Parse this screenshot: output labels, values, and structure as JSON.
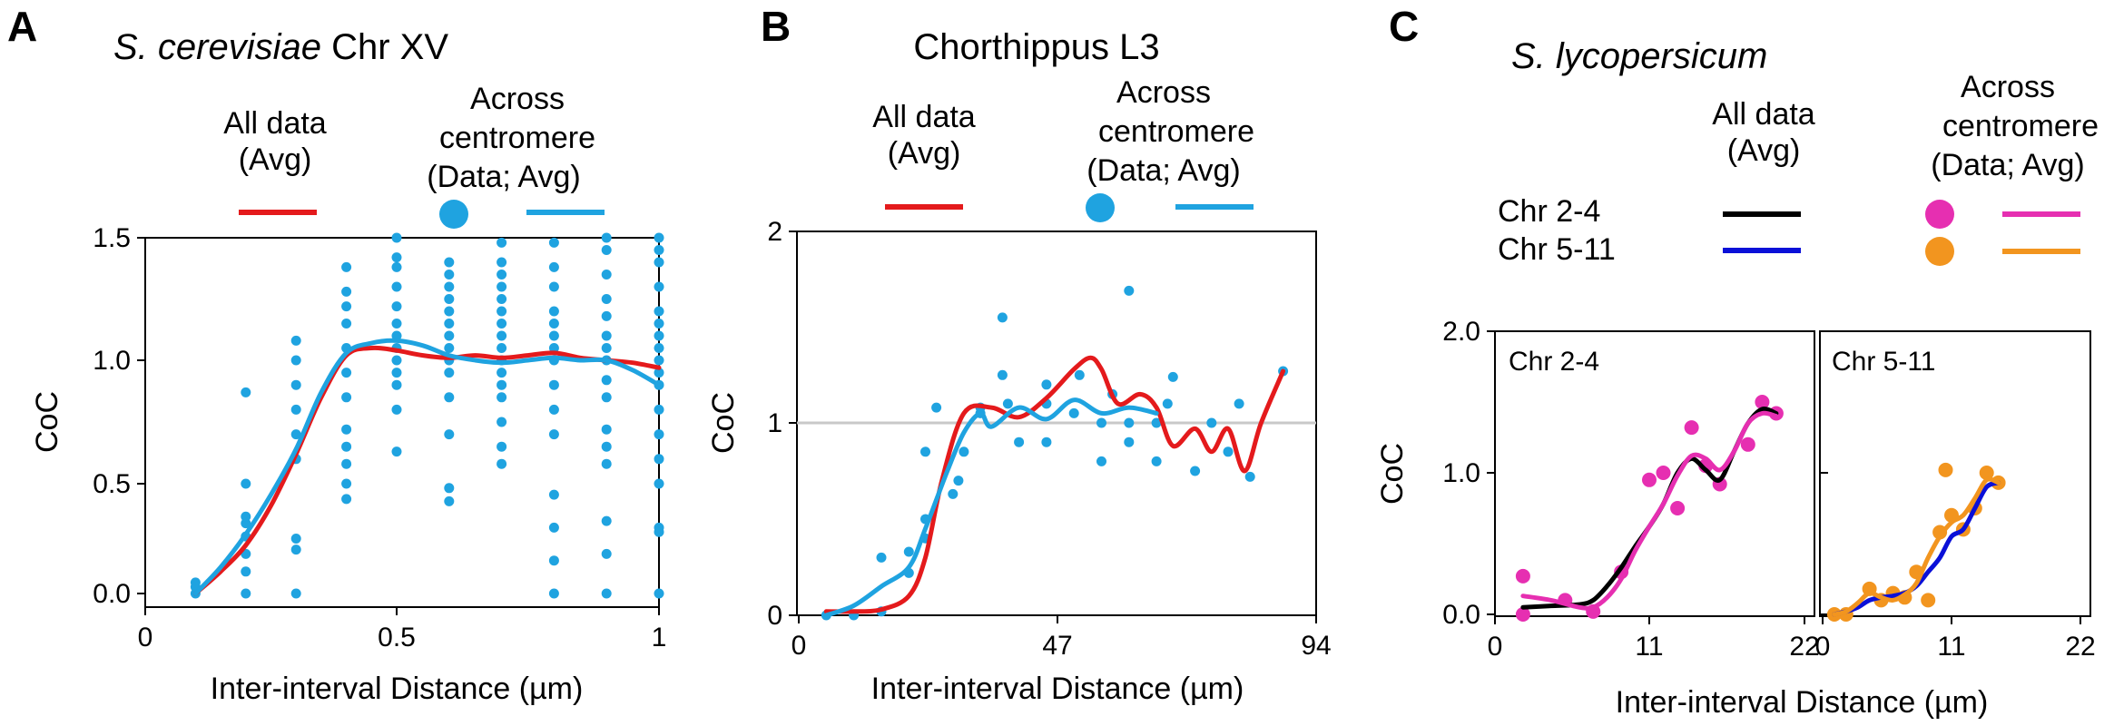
{
  "colors": {
    "red": "#e41a1c",
    "blue_data": "#1fa3e0",
    "black": "#000000",
    "dark_blue": "#0a10d8",
    "magenta": "#e62fb1",
    "orange": "#f2951f"
  },
  "panels": {
    "A": {
      "letter": "A",
      "title_italic": "S. cerevisiae",
      "title_rest": " Chr XV",
      "legend_all": [
        "All data",
        "(Avg)"
      ],
      "legend_across": [
        "Across",
        "centromere",
        "(Data; Avg)"
      ]
    },
    "B": {
      "letter": "B",
      "title": "Chorthippus L3",
      "legend_all": [
        "All data",
        "(Avg)"
      ],
      "legend_across": [
        "Across",
        "centromere",
        "(Data; Avg)"
      ]
    },
    "C": {
      "letter": "C",
      "title_italic": "S. lycopersicum",
      "legend_all": [
        "All data",
        "(Avg)"
      ],
      "legend_across": [
        "Across",
        "centromere",
        "(Data; Avg)"
      ],
      "row1": "Chr 2-4",
      "row2": "Chr 5-11"
    }
  },
  "chart_data": [
    {
      "type": "scatter",
      "panel": "A",
      "title": "S. cerevisiae Chr XV",
      "xlabel": "Inter-interval Distance (µm)",
      "ylabel": "CoC",
      "xlim": [
        0,
        1
      ],
      "ylim": [
        0,
        1.5
      ],
      "xticks": [
        "0",
        "0.5",
        "1"
      ],
      "yticks": [
        "0.0",
        "0.5",
        "1.0",
        "1.5"
      ],
      "series": [
        {
          "name": "All data (Avg)",
          "kind": "line",
          "color": "red",
          "x": [
            0.1,
            0.15,
            0.2,
            0.25,
            0.3,
            0.35,
            0.4,
            0.45,
            0.5,
            0.55,
            0.6,
            0.65,
            0.7,
            0.75,
            0.8,
            0.85,
            0.9,
            0.95,
            1.0
          ],
          "y": [
            0.0,
            0.1,
            0.22,
            0.4,
            0.62,
            0.85,
            1.02,
            1.05,
            1.04,
            1.02,
            1.01,
            1.02,
            1.01,
            1.02,
            1.03,
            1.01,
            1.0,
            0.99,
            0.97
          ]
        },
        {
          "name": "Across centromere (Avg)",
          "kind": "line",
          "color": "blue_data",
          "x": [
            0.1,
            0.15,
            0.2,
            0.25,
            0.3,
            0.35,
            0.4,
            0.45,
            0.5,
            0.55,
            0.6,
            0.65,
            0.7,
            0.75,
            0.8,
            0.85,
            0.9,
            0.95,
            1.0
          ],
          "y": [
            0.0,
            0.12,
            0.27,
            0.45,
            0.64,
            0.87,
            1.03,
            1.07,
            1.08,
            1.06,
            1.02,
            1.0,
            0.99,
            1.0,
            1.01,
            1.0,
            1.0,
            0.96,
            0.9
          ]
        },
        {
          "name": "Across centromere (Data)",
          "kind": "points",
          "color": "blue_data",
          "groups": [
            {
              "x": 0.1,
              "y": [
                0.0,
                0.03,
                0.05
              ]
            },
            {
              "x": 0.2,
              "y": [
                0.0,
                0.1,
                0.18,
                0.26,
                0.32,
                0.35,
                0.5,
                0.87
              ]
            },
            {
              "x": 0.3,
              "y": [
                0.0,
                0.2,
                0.25,
                0.6,
                0.7,
                0.8,
                0.9,
                1.0,
                1.08
              ]
            },
            {
              "x": 0.4,
              "y": [
                0.43,
                0.5,
                0.58,
                0.65,
                0.72,
                0.85,
                0.95,
                1.05,
                1.15,
                1.22,
                1.28,
                1.38
              ]
            },
            {
              "x": 0.5,
              "y": [
                0.63,
                0.8,
                0.9,
                0.95,
                1.0,
                1.05,
                1.1,
                1.15,
                1.22,
                1.3,
                1.38,
                1.42,
                1.5
              ]
            },
            {
              "x": 0.6,
              "y": [
                0.42,
                0.48,
                0.7,
                0.85,
                0.95,
                1.0,
                1.05,
                1.1,
                1.15,
                1.2,
                1.25,
                1.3,
                1.35,
                1.4
              ]
            },
            {
              "x": 0.7,
              "y": [
                0.58,
                0.65,
                0.75,
                0.85,
                0.9,
                0.95,
                1.0,
                1.05,
                1.1,
                1.15,
                1.2,
                1.25,
                1.3,
                1.35,
                1.4,
                1.48
              ]
            },
            {
              "x": 0.8,
              "y": [
                0.0,
                0.15,
                0.3,
                0.45,
                0.7,
                0.8,
                0.9,
                1.0,
                1.05,
                1.1,
                1.15,
                1.2,
                1.3,
                1.38,
                1.48
              ]
            },
            {
              "x": 0.9,
              "y": [
                0.0,
                0.18,
                0.33,
                0.58,
                0.65,
                0.72,
                0.85,
                0.92,
                1.0,
                1.05,
                1.1,
                1.18,
                1.25,
                1.35,
                1.45,
                1.5
              ]
            },
            {
              "x": 1.0,
              "y": [
                0.0,
                0.28,
                0.3,
                0.5,
                0.6,
                0.7,
                0.8,
                0.9,
                0.95,
                1.0,
                1.05,
                1.1,
                1.15,
                1.2,
                1.3,
                1.4,
                1.45,
                1.5
              ]
            }
          ]
        }
      ]
    },
    {
      "type": "scatter",
      "panel": "B",
      "title": "Chorthippus L3",
      "xlabel": "Inter-interval Distance (µm)",
      "ylabel": "CoC",
      "xlim": [
        0,
        94
      ],
      "ylim": [
        0,
        2
      ],
      "xticks": [
        "0",
        "47",
        "94"
      ],
      "yticks": [
        "0",
        "1",
        "2"
      ],
      "reference_y": 1,
      "series": [
        {
          "name": "All data (Avg)",
          "kind": "line",
          "color": "red",
          "x": [
            5,
            10,
            15,
            20,
            23,
            26,
            30,
            35,
            40,
            45,
            50,
            53,
            55,
            58,
            62,
            65,
            68,
            72,
            75,
            78,
            81,
            84,
            88
          ],
          "y": [
            0.02,
            0.02,
            0.03,
            0.1,
            0.3,
            0.7,
            1.05,
            1.08,
            1.03,
            1.13,
            1.28,
            1.34,
            1.28,
            1.1,
            1.15,
            1.08,
            0.88,
            0.97,
            0.85,
            0.97,
            0.75,
            1.0,
            1.27
          ]
        },
        {
          "name": "Across centromere (Avg)",
          "kind": "line",
          "color": "blue_data",
          "x": [
            5,
            10,
            15,
            20,
            23,
            27,
            30,
            33,
            35,
            40,
            45,
            50,
            55,
            60,
            65
          ],
          "y": [
            0.0,
            0.05,
            0.15,
            0.25,
            0.45,
            0.75,
            0.95,
            1.05,
            0.98,
            1.08,
            1.02,
            1.12,
            1.05,
            1.08,
            1.05
          ]
        },
        {
          "name": "Across centromere (Data)",
          "kind": "points",
          "color": "blue_data",
          "points": [
            [
              5,
              0.0
            ],
            [
              10,
              0.0
            ],
            [
              15,
              0.02
            ],
            [
              15,
              0.3
            ],
            [
              20,
              0.22
            ],
            [
              20,
              0.33
            ],
            [
              23,
              0.4
            ],
            [
              23,
              0.5
            ],
            [
              23,
              0.85
            ],
            [
              25,
              1.08
            ],
            [
              28,
              0.63
            ],
            [
              29,
              0.7
            ],
            [
              30,
              0.85
            ],
            [
              33,
              1.05
            ],
            [
              33,
              1.08
            ],
            [
              37,
              1.25
            ],
            [
              37,
              1.55
            ],
            [
              38,
              1.1
            ],
            [
              40,
              0.9
            ],
            [
              45,
              0.9
            ],
            [
              45,
              1.1
            ],
            [
              45,
              1.2
            ],
            [
              50,
              1.05
            ],
            [
              51,
              1.25
            ],
            [
              55,
              0.8
            ],
            [
              55,
              1.0
            ],
            [
              57,
              1.15
            ],
            [
              60,
              0.9
            ],
            [
              60,
              1.0
            ],
            [
              60,
              1.69
            ],
            [
              65,
              0.8
            ],
            [
              65,
              1.0
            ],
            [
              67,
              1.1
            ],
            [
              68,
              1.24
            ],
            [
              72,
              0.75
            ],
            [
              75,
              1.0
            ],
            [
              78,
              0.85
            ],
            [
              80,
              1.1
            ],
            [
              82,
              0.72
            ],
            [
              88,
              1.27
            ]
          ]
        }
      ]
    },
    {
      "type": "scatter",
      "panel": "C1",
      "title": "S. lycopersicum",
      "subtitle": "Chr 2-4",
      "xlabel": "Inter-interval Distance (µm)",
      "ylabel": "CoC",
      "xlim": [
        0,
        22
      ],
      "ylim": [
        0,
        2
      ],
      "xticks": [
        "0",
        "11",
        "22"
      ],
      "yticks": [
        "0.0",
        "1.0",
        "2.0"
      ],
      "series": [
        {
          "name": "All data (Avg) Chr 2-4",
          "kind": "line",
          "color": "black",
          "x": [
            2,
            4,
            6,
            7,
            8,
            9,
            10,
            11,
            12,
            13,
            14,
            15,
            16,
            17,
            18,
            19,
            20
          ],
          "y": [
            0.05,
            0.06,
            0.07,
            0.1,
            0.2,
            0.33,
            0.48,
            0.62,
            0.78,
            1.0,
            1.1,
            1.02,
            0.95,
            1.15,
            1.35,
            1.45,
            1.42
          ]
        },
        {
          "name": "Across centromere (Avg) Chr 2-4",
          "kind": "line",
          "color": "magenta",
          "x": [
            2,
            4,
            6,
            7,
            8,
            9,
            10,
            11,
            12,
            13,
            14,
            15,
            16,
            17,
            18,
            19,
            20
          ],
          "y": [
            0.13,
            0.1,
            0.05,
            0.05,
            0.12,
            0.25,
            0.45,
            0.62,
            0.78,
            0.98,
            1.12,
            1.1,
            1.02,
            1.15,
            1.35,
            1.42,
            1.4
          ]
        },
        {
          "name": "Across centromere (Data) Chr 2-4",
          "kind": "points",
          "color": "magenta",
          "points": [
            [
              2,
              0.27
            ],
            [
              2,
              0.0
            ],
            [
              5,
              0.1
            ],
            [
              7,
              0.02
            ],
            [
              9,
              0.3
            ],
            [
              11,
              0.95
            ],
            [
              12,
              1.0
            ],
            [
              13,
              0.75
            ],
            [
              14,
              1.32
            ],
            [
              15,
              1.05
            ],
            [
              16,
              0.92
            ],
            [
              18,
              1.2
            ],
            [
              19,
              1.5
            ],
            [
              20,
              1.42
            ]
          ]
        }
      ]
    },
    {
      "type": "scatter",
      "panel": "C2",
      "title": "S. lycopersicum",
      "subtitle": "Chr 5-11",
      "xlabel": "Inter-interval Distance (µm)",
      "xlim": [
        0,
        22
      ],
      "ylim": [
        0,
        2
      ],
      "xticks": [
        "0",
        "11",
        "22"
      ],
      "series": [
        {
          "name": "All data (Avg) Chr 5-11",
          "kind": "line",
          "color": "dark_blue",
          "x": [
            1,
            2,
            3,
            4,
            5,
            6,
            7,
            8,
            9,
            10,
            11,
            12,
            13,
            14,
            15
          ],
          "y": [
            0.0,
            0.02,
            0.05,
            0.1,
            0.12,
            0.13,
            0.15,
            0.2,
            0.3,
            0.4,
            0.55,
            0.6,
            0.75,
            0.9,
            0.93
          ]
        },
        {
          "name": "Across centromere (Avg) Chr 5-11",
          "kind": "line",
          "color": "orange",
          "x": [
            1,
            2,
            3,
            4,
            5,
            6,
            7,
            8,
            9,
            10,
            11,
            12,
            13,
            14,
            15
          ],
          "y": [
            0.0,
            0.02,
            0.08,
            0.15,
            0.12,
            0.1,
            0.14,
            0.22,
            0.4,
            0.55,
            0.65,
            0.7,
            0.82,
            0.95,
            0.93
          ]
        },
        {
          "name": "Across centromere (Data) Chr 5-11",
          "kind": "points",
          "color": "orange",
          "points": [
            [
              1,
              0.0
            ],
            [
              2,
              0.0
            ],
            [
              4,
              0.18
            ],
            [
              5,
              0.1
            ],
            [
              6,
              0.15
            ],
            [
              7,
              0.12
            ],
            [
              8,
              0.3
            ],
            [
              9,
              0.1
            ],
            [
              10,
              0.58
            ],
            [
              10.5,
              1.02
            ],
            [
              11,
              0.7
            ],
            [
              12,
              0.6
            ],
            [
              13,
              0.75
            ],
            [
              14,
              1.0
            ],
            [
              15,
              0.93
            ]
          ]
        }
      ]
    }
  ]
}
